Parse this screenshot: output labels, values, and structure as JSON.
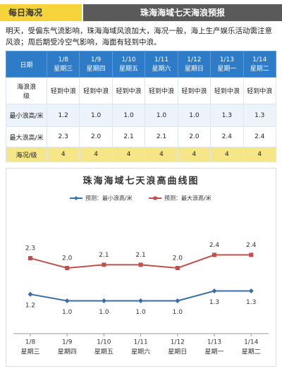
{
  "header": {
    "tag": "每日海况",
    "title": "珠海海域七天海浪预报"
  },
  "summary": "明天，受偏东气流影响，珠海海域风浪加大，海况一般，海上生产娱乐活动需注意风浪；周后期受冷空气影响，海面有轻到中浪。",
  "table": {
    "corner": "日期",
    "dates": [
      "1/8",
      "1/9",
      "1/10",
      "1/11",
      "1/12",
      "1/13",
      "1/14"
    ],
    "weekdays": [
      "星期三",
      "星期四",
      "星期五",
      "星期六",
      "星期日",
      "星期一",
      "星期二"
    ],
    "rows": [
      [
        "海浪浪级",
        "轻到中浪",
        "轻到中浪",
        "轻到中浪",
        "轻到中浪",
        "轻到中浪",
        "轻到中浪",
        "轻到中浪"
      ],
      [
        "最小浪高/米",
        "1.2",
        "1.0",
        "1.0",
        "1.0",
        "1.0",
        "1.3",
        "1.3"
      ],
      [
        "最大浪高/米",
        "2.3",
        "2.0",
        "2.1",
        "2.1",
        "2.0",
        "2.4",
        "2.4"
      ],
      [
        "海况/级",
        "4",
        "4",
        "4",
        "4",
        "4",
        "4",
        "4"
      ]
    ]
  },
  "chart_data": {
    "type": "line",
    "title": "珠海海域七天浪高曲线图",
    "categories": [
      "1/8",
      "1/9",
      "1/10",
      "1/11",
      "1/12",
      "1/13",
      "1/14"
    ],
    "weekdays": [
      "星期三",
      "星期四",
      "星期五",
      "星期六",
      "星期日",
      "星期一",
      "星期二"
    ],
    "ylim": [
      0,
      4
    ],
    "series": [
      {
        "name": "预测：最小浪高/米",
        "color": "#3a6ea5",
        "values": [
          1.2,
          1.0,
          1.0,
          1.0,
          1.0,
          1.3,
          1.3
        ],
        "value_labels": [
          "1.2",
          "1.0",
          "1.0",
          "1.0",
          "1.0",
          "1.3",
          "1.3"
        ]
      },
      {
        "name": "预测：最大浪高/米",
        "color": "#c0504d",
        "values": [
          2.3,
          2.0,
          2.1,
          2.1,
          2.0,
          2.4,
          2.4
        ],
        "value_labels": [
          "2.3",
          "2.0",
          "2.1",
          "2.1",
          "2.0",
          "2.4",
          "2.4"
        ]
      }
    ]
  }
}
